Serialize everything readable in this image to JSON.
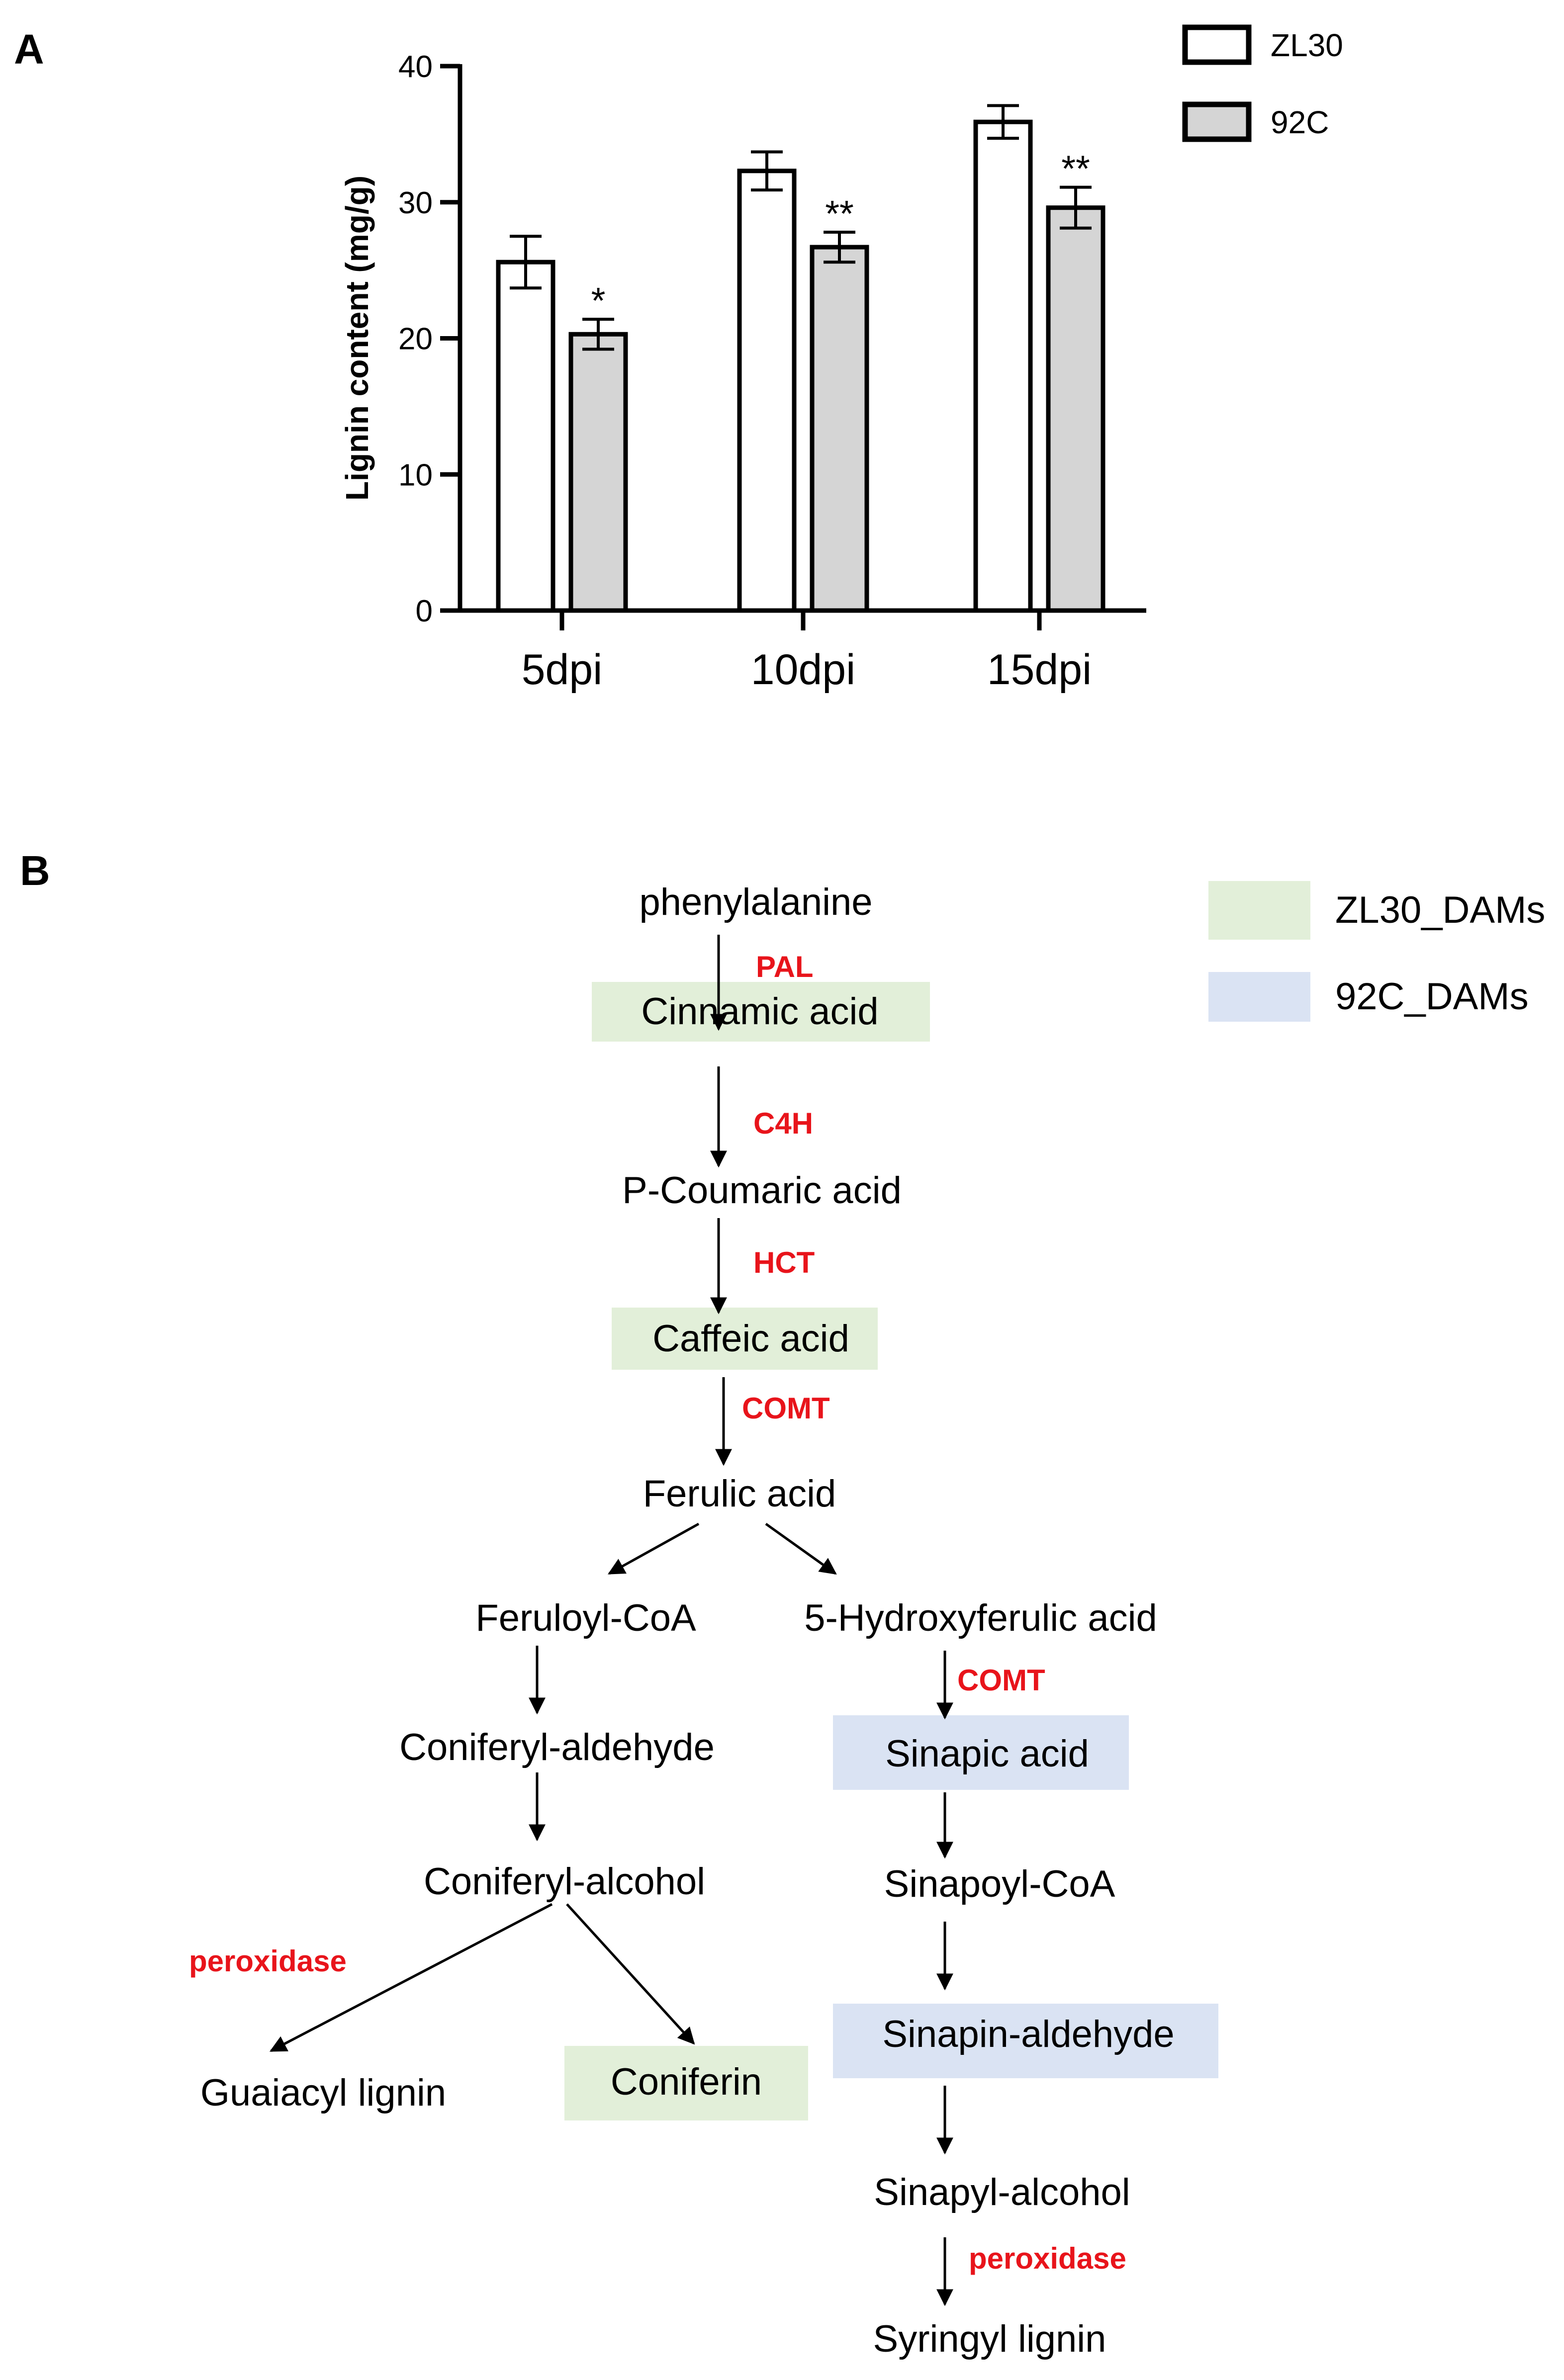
{
  "panels": {
    "a_label": "A",
    "b_label": "B"
  },
  "colors": {
    "bar_zl30": "#ffffff",
    "bar_92c": "#d5d5d5",
    "bar_stroke": "#000000",
    "enzyme_text": "#e8141b",
    "highlight_zl30": "#e2efd9",
    "highlight_92c": "#dae3f3"
  },
  "chart_data": {
    "type": "bar",
    "categories": [
      "5dpi",
      "10dpi",
      "15dpi"
    ],
    "ylabel": "Lignin content (mg/g)",
    "xlabel": "",
    "ylim": [
      0,
      40
    ],
    "yticks": [
      0,
      10,
      20,
      30,
      40
    ],
    "legend_position": "top-right",
    "grid": false,
    "series": [
      {
        "name": "ZL30",
        "values": [
          25.6,
          32.3,
          35.9
        ],
        "errors": [
          1.9,
          1.4,
          1.2
        ],
        "significance": [
          "",
          "",
          ""
        ]
      },
      {
        "name": "92C",
        "values": [
          20.3,
          26.7,
          29.6
        ],
        "errors": [
          1.1,
          1.1,
          1.5
        ],
        "significance": [
          "*",
          "**",
          "**"
        ]
      }
    ]
  },
  "pathway": {
    "legend": [
      {
        "label": "ZL30_DAMs",
        "color_key": "highlight_zl30"
      },
      {
        "label": "92C_DAMs",
        "color_key": "highlight_92c"
      }
    ],
    "nodes": {
      "phenylalanine": "phenylalanine",
      "cinnamic_acid": "Cinnamic acid",
      "p_coumaric_acid": "P-Coumaric acid",
      "caffeic_acid": "Caffeic acid",
      "ferulic_acid": "Ferulic acid",
      "feruloyl_coa": "Feruloyl-CoA",
      "hydroxyferulic_acid": "5-Hydroxyferulic acid",
      "coniferyl_aldehyde": "Coniferyl-aldehyde",
      "sinapic_acid": "Sinapic acid",
      "coniferyl_alcohol": "Coniferyl-alcohol",
      "sinapoyl_coa": "Sinapoyl-CoA",
      "guaiacyl_lignin": "Guaiacyl lignin",
      "coniferin": "Coniferin",
      "sinapin_aldehyde": "Sinapin-aldehyde",
      "sinapyl_alcohol": "Sinapyl-alcohol",
      "syringyl_lignin": "Syringyl lignin"
    },
    "highlights": {
      "cinnamic_acid": "highlight_zl30",
      "caffeic_acid": "highlight_zl30",
      "coniferin": "highlight_zl30",
      "sinapic_acid": "highlight_92c",
      "sinapin_aldehyde": "highlight_92c"
    },
    "enzymes": {
      "pal": "PAL",
      "c4h": "C4H",
      "hct": "HCT",
      "comt_1": "COMT",
      "comt_2": "COMT",
      "peroxidase_g": "peroxidase",
      "peroxidase_s": "peroxidase"
    }
  }
}
